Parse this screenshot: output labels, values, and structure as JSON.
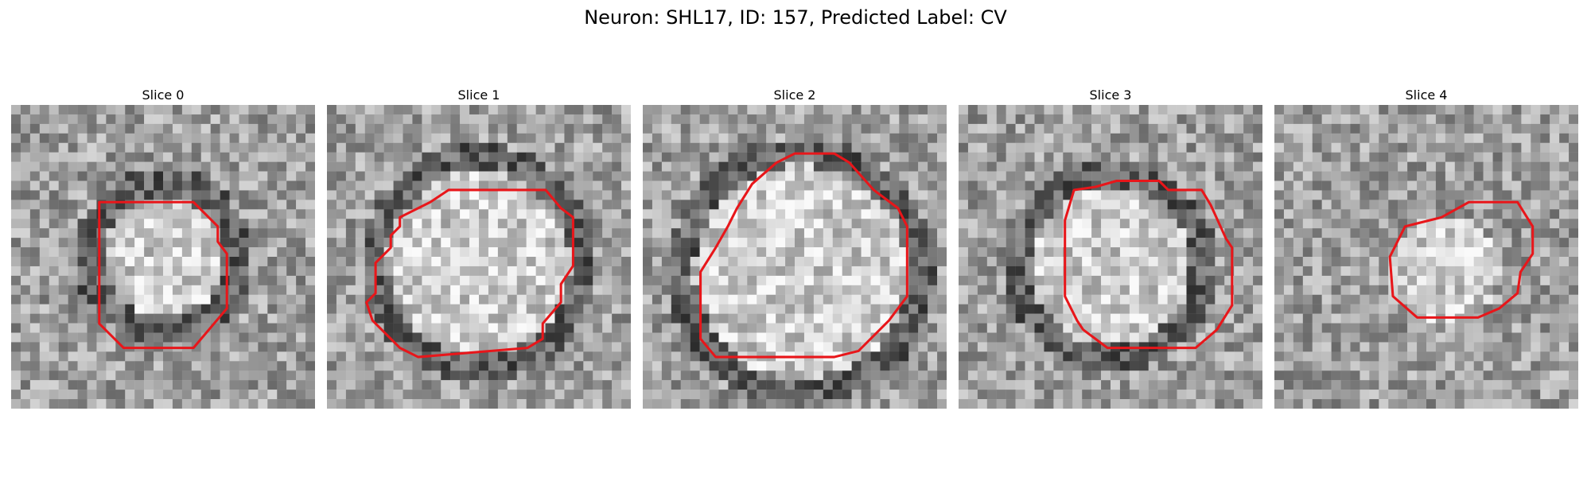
{
  "figure": {
    "title": "Neuron: SHL17, ID: 157, Predicted Label: CV",
    "contour_color": "#e8161a"
  },
  "panels": [
    {
      "title": "Slice 0",
      "bright_center": [
        0.5,
        0.5
      ],
      "bright_radius": 0.2,
      "dark_ring": true,
      "contour": [
        [
          0.29,
          0.32
        ],
        [
          0.4,
          0.32
        ],
        [
          0.6,
          0.32
        ],
        [
          0.68,
          0.4
        ],
        [
          0.68,
          0.45
        ],
        [
          0.71,
          0.49
        ],
        [
          0.71,
          0.67
        ],
        [
          0.6,
          0.8
        ],
        [
          0.37,
          0.8
        ],
        [
          0.29,
          0.72
        ]
      ]
    },
    {
      "title": "Slice 1",
      "bright_center": [
        0.5,
        0.52
      ],
      "bright_radius": 0.3,
      "dark_ring": true,
      "contour": [
        [
          0.34,
          0.32
        ],
        [
          0.4,
          0.28
        ],
        [
          0.72,
          0.28
        ],
        [
          0.77,
          0.34
        ],
        [
          0.81,
          0.37
        ],
        [
          0.81,
          0.53
        ],
        [
          0.77,
          0.59
        ],
        [
          0.77,
          0.65
        ],
        [
          0.71,
          0.72
        ],
        [
          0.71,
          0.77
        ],
        [
          0.66,
          0.8
        ],
        [
          0.3,
          0.83
        ],
        [
          0.24,
          0.8
        ],
        [
          0.15,
          0.71
        ],
        [
          0.13,
          0.65
        ],
        [
          0.16,
          0.62
        ],
        [
          0.16,
          0.52
        ],
        [
          0.21,
          0.47
        ],
        [
          0.21,
          0.43
        ],
        [
          0.24,
          0.4
        ],
        [
          0.24,
          0.37
        ]
      ]
    },
    {
      "title": "Slice 2",
      "bright_center": [
        0.52,
        0.55
      ],
      "bright_radius": 0.35,
      "dark_ring": true,
      "contour": [
        [
          0.5,
          0.16
        ],
        [
          0.63,
          0.16
        ],
        [
          0.68,
          0.19
        ],
        [
          0.76,
          0.28
        ],
        [
          0.84,
          0.34
        ],
        [
          0.87,
          0.4
        ],
        [
          0.87,
          0.63
        ],
        [
          0.81,
          0.71
        ],
        [
          0.71,
          0.81
        ],
        [
          0.63,
          0.83
        ],
        [
          0.24,
          0.83
        ],
        [
          0.19,
          0.77
        ],
        [
          0.19,
          0.55
        ],
        [
          0.24,
          0.47
        ],
        [
          0.28,
          0.4
        ],
        [
          0.31,
          0.34
        ],
        [
          0.36,
          0.26
        ],
        [
          0.44,
          0.19
        ]
      ]
    },
    {
      "title": "Slice 3",
      "bright_center": [
        0.5,
        0.53
      ],
      "bright_radius": 0.26,
      "dark_ring": true,
      "contour": [
        [
          0.38,
          0.28
        ],
        [
          0.45,
          0.27
        ],
        [
          0.52,
          0.25
        ],
        [
          0.66,
          0.25
        ],
        [
          0.69,
          0.28
        ],
        [
          0.8,
          0.28
        ],
        [
          0.83,
          0.33
        ],
        [
          0.88,
          0.44
        ],
        [
          0.9,
          0.47
        ],
        [
          0.9,
          0.66
        ],
        [
          0.85,
          0.74
        ],
        [
          0.78,
          0.8
        ],
        [
          0.49,
          0.8
        ],
        [
          0.45,
          0.77
        ],
        [
          0.41,
          0.74
        ],
        [
          0.39,
          0.71
        ],
        [
          0.36,
          0.65
        ],
        [
          0.35,
          0.63
        ],
        [
          0.35,
          0.38
        ]
      ]
    },
    {
      "title": "Slice 4",
      "bright_center": [
        0.56,
        0.55
      ],
      "bright_radius": 0.18,
      "dark_ring": false,
      "contour": [
        [
          0.38,
          0.5
        ],
        [
          0.43,
          0.4
        ],
        [
          0.55,
          0.37
        ],
        [
          0.64,
          0.32
        ],
        [
          0.8,
          0.32
        ],
        [
          0.85,
          0.4
        ],
        [
          0.85,
          0.49
        ],
        [
          0.81,
          0.55
        ],
        [
          0.8,
          0.62
        ],
        [
          0.74,
          0.67
        ],
        [
          0.67,
          0.7
        ],
        [
          0.47,
          0.7
        ],
        [
          0.39,
          0.63
        ]
      ]
    }
  ]
}
